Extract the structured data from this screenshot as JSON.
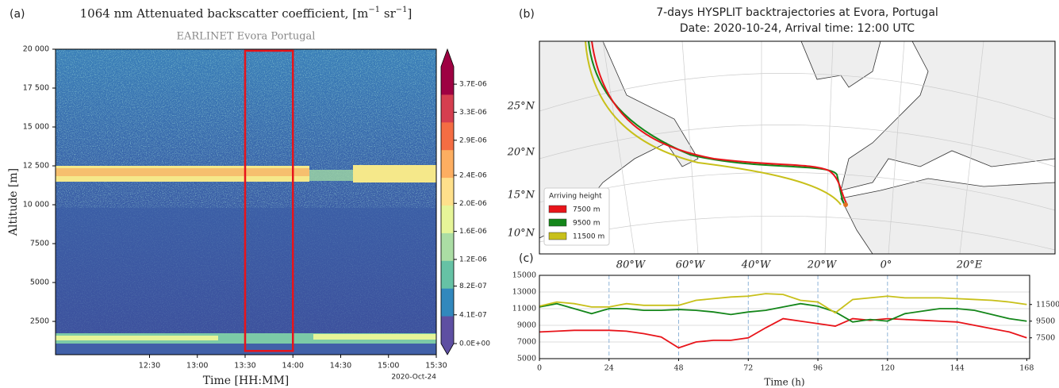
{
  "chart_data": [
    {
      "type": "heatmap",
      "panel_label": "(a)",
      "title": "1064 nm Attenuated backscatter coefficient, ",
      "title_units": [
        "[m",
        "−1",
        " sr",
        "−1",
        "]"
      ],
      "subtitle": "EARLINET Evora Portugal",
      "xlabel": "Time [HH:MM]",
      "ylabel": "Altitude [m]",
      "date_label": "2020-Oct-24",
      "xlim": [
        "11:31",
        "15:30"
      ],
      "xticks": [
        "12:30",
        "13:00",
        "13:30",
        "14:00",
        "14:30",
        "15:00",
        "15:30"
      ],
      "ylim": [
        360,
        20000
      ],
      "yticks": [
        2500,
        5000,
        7500,
        {
          "value": 10000,
          "label": "10 000"
        },
        {
          "value": 12500,
          "label": "12 500"
        },
        {
          "value": 15000,
          "label": "15 000"
        },
        {
          "value": 17500,
          "label": "17 500"
        },
        {
          "value": 20000,
          "label": "20 000"
        }
      ],
      "highlight": {
        "x": [
          "13:30",
          "14:00"
        ],
        "y": [
          600,
          19900
        ],
        "color": "#e8141a"
      },
      "colorbar": {
        "clim": [
          0,
          3.95e-06
        ],
        "ticks": [
          {
            "value": 0,
            "label": "0.0E+00"
          },
          {
            "value": 4.1e-07,
            "label": "4.1E-07"
          },
          {
            "value": 8.2e-07,
            "label": "8.2E-07"
          },
          {
            "value": 1.2e-06,
            "label": "1.2E-06"
          },
          {
            "value": 1.6e-06,
            "label": "1.6E-06"
          },
          {
            "value": 2e-06,
            "label": "2.0E-06"
          },
          {
            "value": 2.4e-06,
            "label": "2.4E-06"
          },
          {
            "value": 2.9e-06,
            "label": "2.9E-06"
          },
          {
            "value": 3.3e-06,
            "label": "3.3E-06"
          },
          {
            "value": 3.7e-06,
            "label": "3.7E-06"
          }
        ],
        "colors": [
          "#5e4fa2",
          "#3288bd",
          "#66c2a5",
          "#abdda4",
          "#e6f598",
          "#fee08b",
          "#fdae61",
          "#f46d43",
          "#d53e4f",
          "#9e0142"
        ]
      }
    },
    {
      "type": "map",
      "panel_label": "(b)",
      "title": "7-days HYSPLIT backtrajectories at Evora, Portugal",
      "subtitle": "Date: 2020-10-24, Arrival time: 12:00 UTC",
      "lat_labels": [
        "25°N",
        "20°N",
        "15°N",
        "10°N"
      ],
      "lon_labels": [
        "80°W",
        "60°W",
        "40°W",
        "20°W",
        "0°",
        "20°E"
      ],
      "legend_title": "Arriving height",
      "series": [
        {
          "name": "7500 m",
          "color": "#e8141a"
        },
        {
          "name": "9500 m",
          "color": "#14861a"
        },
        {
          "name": "11500 m",
          "color": "#c8c01a"
        }
      ]
    },
    {
      "type": "line",
      "panel_label": "(c)",
      "xlabel": "Time (h)",
      "x": [
        0,
        6,
        12,
        18,
        24,
        30,
        36,
        42,
        48,
        54,
        60,
        66,
        72,
        78,
        84,
        90,
        96,
        102,
        108,
        114,
        120,
        126,
        132,
        138,
        144,
        150,
        156,
        162,
        168
      ],
      "xlim": [
        0,
        169
      ],
      "xticks": [
        0,
        24,
        48,
        72,
        96,
        120,
        144,
        168
      ],
      "ylim": [
        5000,
        15000
      ],
      "yticks": [
        5000,
        7000,
        9000,
        11000,
        13000,
        15000
      ],
      "y2ticks": [
        7500,
        9500,
        11500
      ],
      "grid": true,
      "series": [
        {
          "name": "7500 m",
          "color": "#e8141a",
          "values": [
            8200,
            8300,
            8400,
            8400,
            8400,
            8300,
            8000,
            7600,
            6300,
            7000,
            7200,
            7200,
            7500,
            8700,
            9800,
            9500,
            9200,
            8900,
            9800,
            9600,
            9800,
            9700,
            9600,
            9500,
            9400,
            9000,
            8600,
            8200,
            7500
          ]
        },
        {
          "name": "9500 m",
          "color": "#14861a",
          "values": [
            11200,
            11600,
            11000,
            10400,
            11000,
            11000,
            10800,
            10800,
            10900,
            10800,
            10600,
            10300,
            10600,
            10800,
            11200,
            11600,
            11300,
            10600,
            9400,
            9700,
            9500,
            10400,
            10700,
            11000,
            11000,
            10800,
            10300,
            9800,
            9500
          ]
        },
        {
          "name": "11500 m",
          "color": "#c8c01a",
          "values": [
            11300,
            11800,
            11600,
            11200,
            11200,
            11600,
            11400,
            11400,
            11400,
            12000,
            12200,
            12400,
            12500,
            12800,
            12700,
            12000,
            11800,
            10500,
            12100,
            12300,
            12500,
            12300,
            12300,
            12300,
            12200,
            12100,
            12000,
            11800,
            11500
          ]
        }
      ]
    }
  ]
}
